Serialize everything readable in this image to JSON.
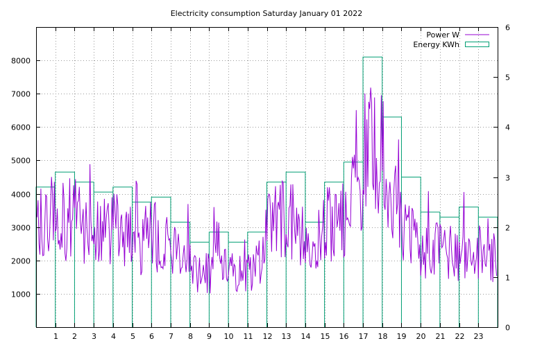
{
  "chart_data": {
    "type": "line",
    "title": "Electricity consumption Saturday January 01 2022",
    "x_ticks": [
      "1",
      "2",
      "3",
      "4",
      "5",
      "6",
      "7",
      "8",
      "9",
      "10",
      "11",
      "12",
      "13",
      "14",
      "15",
      "16",
      "17",
      "18",
      "19",
      "20",
      "21",
      "22",
      "23"
    ],
    "xlim": [
      0,
      24
    ],
    "ylim": [
      0,
      9000
    ],
    "y_ticks": [
      1000,
      2000,
      3000,
      4000,
      5000,
      6000,
      7000,
      8000
    ],
    "y2lim": [
      0,
      6
    ],
    "y2_ticks": [
      0,
      1,
      2,
      3,
      4,
      5,
      6
    ],
    "legend": "top-right",
    "grid": true,
    "series": [
      {
        "name": "Power W",
        "axis": "left",
        "color": "#9400d3",
        "x_step_hours": 0.05,
        "profile_W": [
          [
            0.0,
            3000
          ],
          [
            0.5,
            3100
          ],
          [
            1.0,
            3200
          ],
          [
            1.5,
            3250
          ],
          [
            2.0,
            3400
          ],
          [
            2.5,
            2900
          ],
          [
            3.0,
            2900
          ],
          [
            3.5,
            3000
          ],
          [
            4.0,
            2950
          ],
          [
            4.5,
            2800
          ],
          [
            5.0,
            2600
          ],
          [
            5.5,
            2500
          ],
          [
            6.0,
            2800
          ],
          [
            6.5,
            2700
          ],
          [
            7.0,
            2300
          ],
          [
            7.5,
            2100
          ],
          [
            8.0,
            1900
          ],
          [
            8.5,
            1700
          ],
          [
            9.0,
            1600
          ],
          [
            9.5,
            2400
          ],
          [
            10.0,
            1700
          ],
          [
            10.5,
            1600
          ],
          [
            11.0,
            1600
          ],
          [
            11.5,
            1800
          ],
          [
            12.0,
            2800
          ],
          [
            12.5,
            3200
          ],
          [
            13.0,
            3200
          ],
          [
            13.5,
            3100
          ],
          [
            14.0,
            2200
          ],
          [
            14.5,
            2300
          ],
          [
            15.0,
            3000
          ],
          [
            15.5,
            3200
          ],
          [
            16.0,
            3500
          ],
          [
            16.5,
            3800
          ],
          [
            17.0,
            5000
          ],
          [
            17.5,
            5200
          ],
          [
            18.0,
            5000
          ],
          [
            18.5,
            4000
          ],
          [
            19.0,
            3000
          ],
          [
            19.5,
            2600
          ],
          [
            20.0,
            2300
          ],
          [
            20.5,
            2300
          ],
          [
            21.0,
            2400
          ],
          [
            21.5,
            2400
          ],
          [
            22.0,
            2300
          ],
          [
            22.5,
            2200
          ],
          [
            23.0,
            2200
          ],
          [
            23.5,
            2100
          ],
          [
            24.0,
            2000
          ]
        ]
      },
      {
        "name": "Energy KWh",
        "axis": "right",
        "color": "#009e73",
        "style": "histeps",
        "hours": [
          0,
          1,
          2,
          3,
          4,
          5,
          6,
          7,
          8,
          9,
          10,
          11,
          12,
          13,
          14,
          15,
          16,
          17,
          18,
          19,
          20,
          21,
          22,
          23
        ],
        "values": [
          2.8,
          3.1,
          2.9,
          2.7,
          2.8,
          2.5,
          2.6,
          2.1,
          1.7,
          1.9,
          1.7,
          1.9,
          2.9,
          3.1,
          2.1,
          2.9,
          3.3,
          5.4,
          4.2,
          3.0,
          2.3,
          2.2,
          2.4,
          2.2
        ]
      }
    ]
  }
}
